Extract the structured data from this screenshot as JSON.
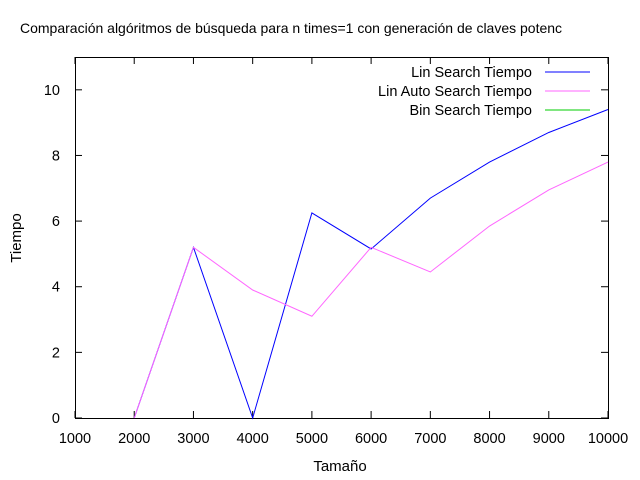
{
  "chart_data": {
    "type": "line",
    "title": "Comparación algóritmos de búsqueda para n times=1 con generación de claves potenc",
    "xlabel": "Tamaño",
    "ylabel": "Tiempo",
    "xlim": [
      1000,
      10000
    ],
    "ylim": [
      0,
      11
    ],
    "x_ticks": [
      "1000",
      "2000",
      "3000",
      "4000",
      "5000",
      "6000",
      "7000",
      "8000",
      "9000",
      "10000"
    ],
    "y_ticks": [
      "0",
      "2",
      "4",
      "6",
      "8",
      "10"
    ],
    "grid": false,
    "legend_position": "top-right",
    "series": [
      {
        "name": "Lin Search Tiempo",
        "color": "#0000ff",
        "x": [
          2000,
          3000,
          4000,
          5000,
          6000,
          7000,
          8000,
          9000,
          10000
        ],
        "values": [
          0,
          5.2,
          0,
          6.25,
          5.15,
          6.7,
          7.8,
          8.7,
          9.4
        ]
      },
      {
        "name": "Lin Auto Search Tiempo",
        "color": "#ff66ff",
        "x": [
          2000,
          3000,
          4000,
          5000,
          6000,
          7000,
          8000,
          9000,
          10000
        ],
        "values": [
          0,
          5.2,
          3.9,
          3.1,
          5.2,
          4.45,
          5.85,
          6.95,
          7.8
        ]
      },
      {
        "name": "Bin Search Tiempo",
        "color": "#00cc00",
        "x": [
          2000
        ],
        "values": [
          0
        ]
      }
    ]
  }
}
